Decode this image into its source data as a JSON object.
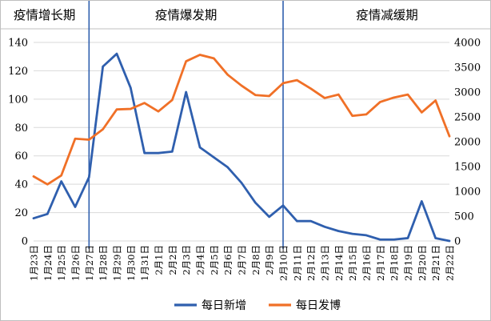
{
  "chart_data": {
    "type": "line",
    "phases": [
      {
        "label": "疫情增长期",
        "start": "1月23日",
        "end": "1月27日"
      },
      {
        "label": "疫情爆发期",
        "start": "1月27日",
        "end": "2月10日"
      },
      {
        "label": "疫情减缓期",
        "start": "2月10日",
        "end": "2月22日"
      }
    ],
    "categories": [
      "1月23日",
      "1月24日",
      "1月25日",
      "1月26日",
      "1月27日",
      "1月28日",
      "1月29日",
      "1月30日",
      "1月31日",
      "2月1日",
      "2月2日",
      "2月3日",
      "2月4日",
      "2月5日",
      "2月6日",
      "2月7日",
      "2月8日",
      "2月9日",
      "2月10日",
      "2月11日",
      "2月12日",
      "2月13日",
      "2月14日",
      "2月15日",
      "2月16日",
      "2月17日",
      "2月18日",
      "2月19日",
      "2月20日",
      "2月21日",
      "2月22日"
    ],
    "y_left": {
      "ticks": [
        0,
        20,
        40,
        60,
        80,
        100,
        120,
        140
      ],
      "range": [
        0,
        140
      ]
    },
    "y_right": {
      "ticks": [
        0,
        500,
        1000,
        1500,
        2000,
        2500,
        3000,
        3500,
        4000
      ],
      "range": [
        0,
        4000
      ]
    },
    "series": [
      {
        "name": "每日新增",
        "axis": "left",
        "color": "#2F5FAE",
        "values": [
          16,
          19,
          42,
          24,
          45,
          123,
          132,
          108,
          62,
          62,
          63,
          105,
          66,
          59,
          52,
          41,
          27,
          17,
          25,
          14,
          14,
          10,
          7,
          5,
          4,
          1,
          1,
          2,
          28,
          2,
          0
        ]
      },
      {
        "name": "每日发博",
        "axis": "right",
        "color": "#F07027",
        "values": [
          1300,
          1140,
          1320,
          2060,
          2040,
          2250,
          2650,
          2660,
          2780,
          2610,
          2840,
          3620,
          3750,
          3680,
          3350,
          3130,
          2940,
          2920,
          3180,
          3240,
          3070,
          2880,
          2950,
          2520,
          2550,
          2800,
          2890,
          2950,
          2590,
          2830,
          2110
        ]
      }
    ],
    "grid": true,
    "legend_position": "bottom"
  }
}
